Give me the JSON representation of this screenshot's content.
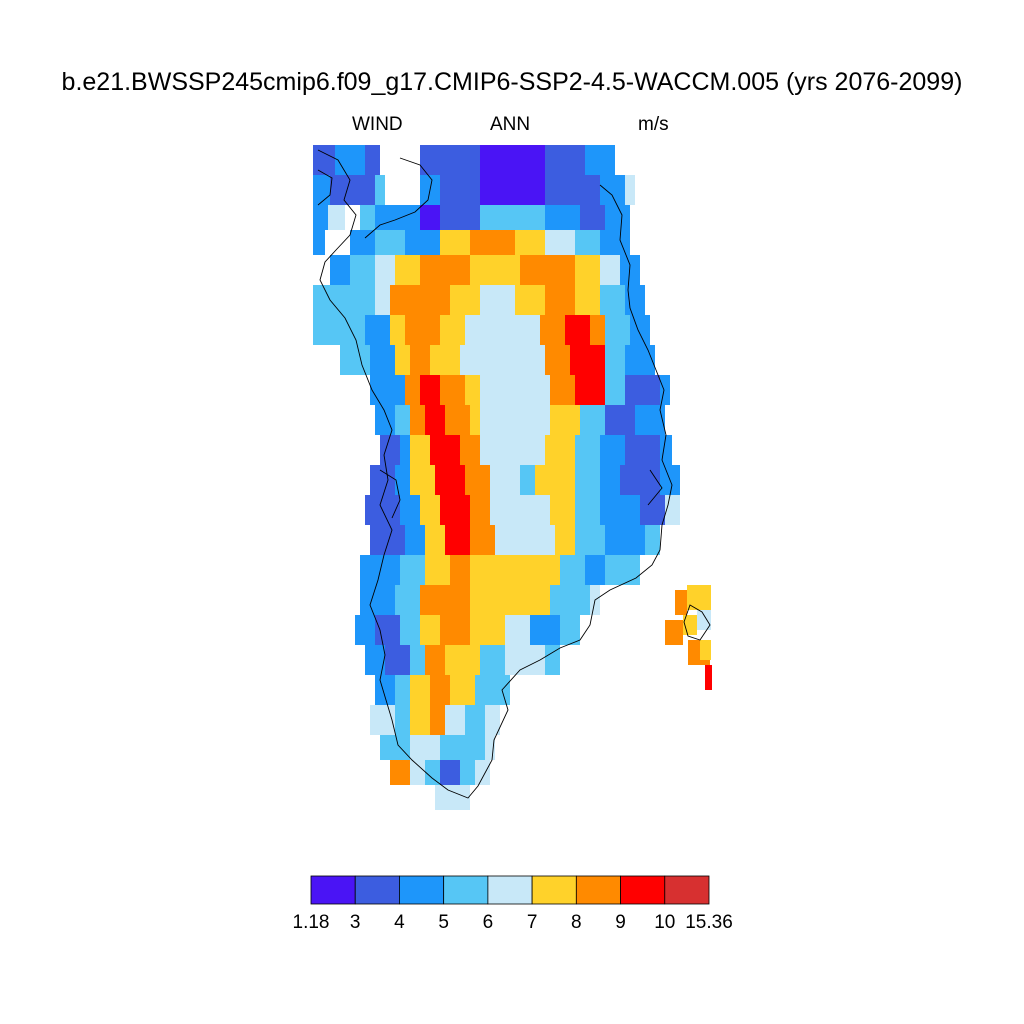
{
  "title": "b.e21.BWSSP245cmip6.f09_g17.CMIP6-SSP2-4.5-WACCM.005 (yrs 2076-2099)",
  "variable": "WIND",
  "season": "ANN",
  "units": "m/s",
  "colorbar": {
    "levels": [
      "1.18",
      "3",
      "4",
      "5",
      "6",
      "7",
      "8",
      "9",
      "10",
      "15.36"
    ],
    "colors": [
      "#4a14f5",
      "#3c5de0",
      "#1e96fa",
      "#56c6f5",
      "#c8e8f8",
      "#ffd22a",
      "#ff8a00",
      "#ff0000",
      "#d73030"
    ]
  },
  "coastline_color": "#000000"
}
